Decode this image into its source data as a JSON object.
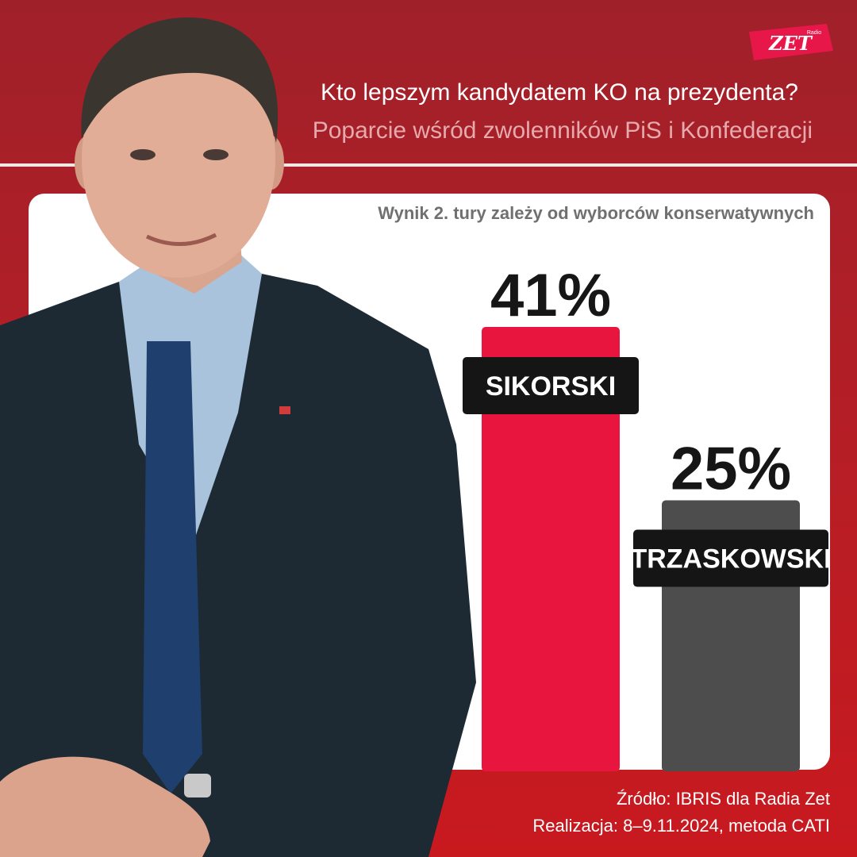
{
  "header": {
    "title": "Kto lepszym kandydatem KO na prezydenta?",
    "subtitle": "Poparcie wśród zwolenników PiS i Konfederacji"
  },
  "logo": {
    "text": "ZET",
    "small_text": "Radio"
  },
  "panel_note": "Wynik 2. tury zależy od wyborców konserwatywnych",
  "footer": {
    "source": "Źródło: IBRIS dla Radia Zet",
    "method": "Realizacja: 8–9.11.2024, metoda CATI"
  },
  "photo": {
    "description_icon": "politician-portrait-icon"
  },
  "colors": {
    "background": "#b71e25",
    "bar_primary": "#e8163f",
    "bar_secondary": "#4d4d4d",
    "label_bg": "#151515"
  },
  "chart_data": {
    "type": "bar",
    "categories": [
      "SIKORSKI",
      "TRZASKOWSKI"
    ],
    "values": [
      41,
      25
    ],
    "value_labels": [
      "41%",
      "25%"
    ],
    "colors": [
      "#e8163f",
      "#4d4d4d"
    ],
    "ylim": [
      0,
      41
    ],
    "title": "",
    "xlabel": "",
    "ylabel": ""
  }
}
